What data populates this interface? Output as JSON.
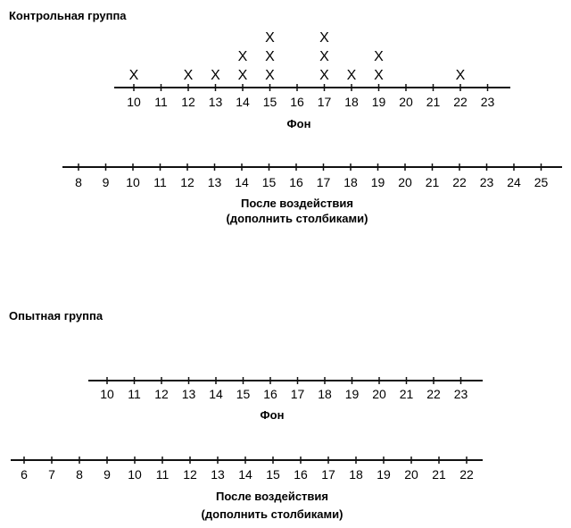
{
  "chart_data": [
    {
      "type": "scatter",
      "group": "Контрольная группа",
      "caption": "Фон",
      "marker": "X",
      "ticks": [
        10,
        11,
        12,
        13,
        14,
        15,
        16,
        17,
        18,
        19,
        20,
        21,
        22,
        23
      ],
      "values": [
        10,
        12,
        13,
        14,
        14,
        15,
        15,
        15,
        17,
        17,
        17,
        18,
        19,
        19,
        22
      ],
      "counts": {
        "10": 1,
        "12": 1,
        "13": 1,
        "14": 2,
        "15": 3,
        "17": 3,
        "18": 1,
        "19": 2,
        "22": 1
      }
    },
    {
      "type": "scatter",
      "group": "Контрольная группа",
      "caption": "После воздействия",
      "caption_note": "(дополнить столбиками)",
      "marker": "X",
      "ticks": [
        8,
        9,
        10,
        11,
        12,
        13,
        14,
        15,
        16,
        17,
        18,
        19,
        20,
        21,
        22,
        23,
        24,
        25
      ],
      "values": []
    },
    {
      "type": "scatter",
      "group": "Опытная группа",
      "caption": "Фон",
      "marker": "X",
      "ticks": [
        10,
        11,
        12,
        13,
        14,
        15,
        16,
        17,
        18,
        19,
        20,
        21,
        22,
        23
      ],
      "values": []
    },
    {
      "type": "scatter",
      "group": "Опытная группа",
      "caption": "После воздействия",
      "caption_note": "(дополнить столбиками)",
      "marker": "X",
      "ticks": [
        6,
        7,
        8,
        9,
        10,
        11,
        12,
        13,
        14,
        15,
        16,
        17,
        18,
        19,
        20,
        21,
        22
      ],
      "values": []
    }
  ]
}
